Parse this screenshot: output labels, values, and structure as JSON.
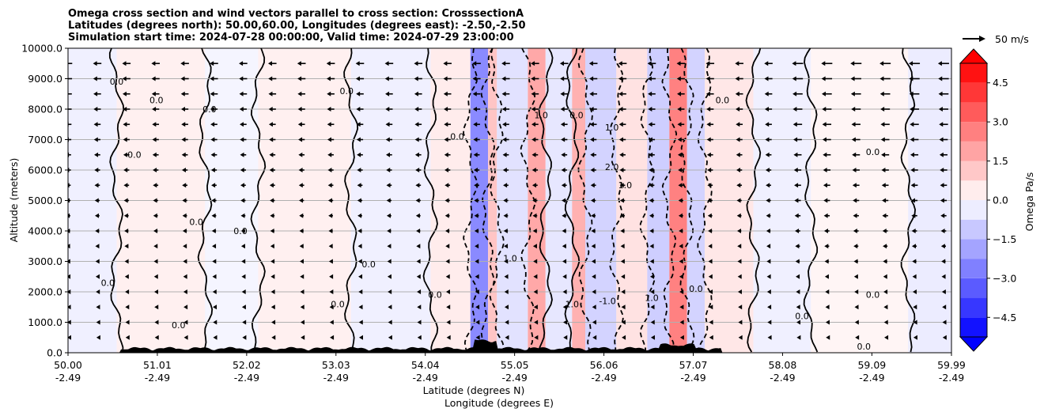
{
  "title_lines": [
    "Omega cross section and wind vectors parallel to cross section: CrosssectionA",
    "Latitudes (degrees north): 50.00,60.00, Longitudes (degrees east): -2.50,-2.50",
    "Simulation start time: 2024-07-28 00:00:00, Valid time: 2024-07-29 23:00:00"
  ],
  "chart_data": {
    "type": "heatmap",
    "ylabel": "Altitude (meters)",
    "xlabel_line1": "Latitude (degrees N)",
    "xlabel_line2": "Longitude (degrees E)",
    "ylim": [
      0,
      10000
    ],
    "xlim": [
      50.0,
      59.99
    ],
    "y_ticks": [
      {
        "value": 0,
        "label": "0.0"
      },
      {
        "value": 1000,
        "label": "1000.0"
      },
      {
        "value": 2000,
        "label": "2000.0"
      },
      {
        "value": 3000,
        "label": "3000.0"
      },
      {
        "value": 4000,
        "label": "4000.0"
      },
      {
        "value": 5000,
        "label": "5000.0"
      },
      {
        "value": 6000,
        "label": "6000.0"
      },
      {
        "value": 7000,
        "label": "7000.0"
      },
      {
        "value": 8000,
        "label": "8000.0"
      },
      {
        "value": 9000,
        "label": "9000.0"
      },
      {
        "value": 10000,
        "label": "10000.0"
      }
    ],
    "x_ticks": [
      {
        "value": 50.0,
        "lat": "50.00",
        "lon": "-2.49"
      },
      {
        "value": 51.01,
        "lat": "51.01",
        "lon": "-2.49"
      },
      {
        "value": 52.02,
        "lat": "52.02",
        "lon": "-2.49"
      },
      {
        "value": 53.03,
        "lat": "53.03",
        "lon": "-2.49"
      },
      {
        "value": 54.04,
        "lat": "54.04",
        "lon": "-2.49"
      },
      {
        "value": 55.05,
        "lat": "55.05",
        "lon": "-2.49"
      },
      {
        "value": 56.06,
        "lat": "56.06",
        "lon": "-2.49"
      },
      {
        "value": 57.07,
        "lat": "57.07",
        "lon": "-2.49"
      },
      {
        "value": 58.08,
        "lat": "58.08",
        "lon": "-2.49"
      },
      {
        "value": 59.09,
        "lat": "59.09",
        "lon": "-2.49"
      },
      {
        "value": 59.99,
        "lat": "59.99",
        "lon": "-2.49"
      }
    ],
    "grid": "horizontal",
    "colorbar": {
      "label": "Omega Pa/s",
      "range": [
        -5.25,
        5.25
      ],
      "ticks": [
        {
          "value": 4.5,
          "label": "4.5"
        },
        {
          "value": 3.0,
          "label": "3.0"
        },
        {
          "value": 1.5,
          "label": "1.5"
        },
        {
          "value": 0.0,
          "label": "0.0"
        },
        {
          "value": -1.5,
          "label": "−1.5"
        },
        {
          "value": -3.0,
          "label": "−3.0"
        },
        {
          "value": -4.5,
          "label": "−4.5"
        }
      ],
      "extend": "both",
      "colormap": "bwr"
    },
    "quiver_key_label": "50 m/s",
    "field_bands": [
      {
        "x0": 50.0,
        "x1": 50.55,
        "omega": -0.3
      },
      {
        "x0": 50.55,
        "x1": 51.55,
        "omega": 0.3
      },
      {
        "x0": 51.55,
        "x1": 52.15,
        "omega": -0.2
      },
      {
        "x0": 52.15,
        "x1": 53.2,
        "omega": 0.3
      },
      {
        "x0": 53.2,
        "x1": 54.1,
        "omega": -0.3
      },
      {
        "x0": 54.1,
        "x1": 54.55,
        "omega": 0.4
      },
      {
        "x0": 54.55,
        "x1": 54.75,
        "omega": -2.4
      },
      {
        "x0": 54.75,
        "x1": 54.85,
        "omega": 1.2
      },
      {
        "x0": 54.85,
        "x1": 55.2,
        "omega": -0.6
      },
      {
        "x0": 55.2,
        "x1": 55.4,
        "omega": 1.8
      },
      {
        "x0": 55.4,
        "x1": 55.7,
        "omega": -0.5
      },
      {
        "x0": 55.7,
        "x1": 55.85,
        "omega": 1.6
      },
      {
        "x0": 55.85,
        "x1": 56.2,
        "omega": -0.9
      },
      {
        "x0": 56.2,
        "x1": 56.55,
        "omega": 0.6
      },
      {
        "x0": 56.55,
        "x1": 56.8,
        "omega": -1.0
      },
      {
        "x0": 56.8,
        "x1": 57.0,
        "omega": 2.6
      },
      {
        "x0": 57.0,
        "x1": 57.2,
        "omega": -0.9
      },
      {
        "x0": 57.2,
        "x1": 57.75,
        "omega": 0.5
      },
      {
        "x0": 57.75,
        "x1": 58.4,
        "omega": -0.3
      },
      {
        "x0": 58.4,
        "x1": 59.5,
        "omega": 0.2
      },
      {
        "x0": 59.5,
        "x1": 59.99,
        "omega": -0.4
      }
    ],
    "contour_labels": [
      {
        "x": 50.55,
        "y": 8800,
        "text": "0.0"
      },
      {
        "x": 51.0,
        "y": 8200,
        "text": "0.0"
      },
      {
        "x": 51.6,
        "y": 7900,
        "text": "0.0"
      },
      {
        "x": 50.75,
        "y": 6400,
        "text": "0.0"
      },
      {
        "x": 51.45,
        "y": 4200,
        "text": "0.0"
      },
      {
        "x": 51.95,
        "y": 3900,
        "text": "0.0"
      },
      {
        "x": 50.45,
        "y": 2200,
        "text": "0.0"
      },
      {
        "x": 51.25,
        "y": 800,
        "text": "0.0"
      },
      {
        "x": 53.15,
        "y": 8500,
        "text": "0.0"
      },
      {
        "x": 53.4,
        "y": 2800,
        "text": "0.0"
      },
      {
        "x": 53.05,
        "y": 1500,
        "text": "0.0"
      },
      {
        "x": 54.4,
        "y": 7000,
        "text": "0.0"
      },
      {
        "x": 54.15,
        "y": 1800,
        "text": "0.0"
      },
      {
        "x": 55.35,
        "y": 7700,
        "text": "1.0"
      },
      {
        "x": 55.75,
        "y": 7700,
        "text": "0.0"
      },
      {
        "x": 56.15,
        "y": 7300,
        "text": "1.0"
      },
      {
        "x": 56.15,
        "y": 6000,
        "text": "2.0"
      },
      {
        "x": 56.3,
        "y": 5400,
        "text": "1.0"
      },
      {
        "x": 55.0,
        "y": 3000,
        "text": "1.0"
      },
      {
        "x": 55.7,
        "y": 1500,
        "text": "1.0"
      },
      {
        "x": 56.1,
        "y": 1600,
        "text": "-1.0"
      },
      {
        "x": 56.6,
        "y": 1700,
        "text": "1.0"
      },
      {
        "x": 57.1,
        "y": 2000,
        "text": "0.0"
      },
      {
        "x": 57.4,
        "y": 8200,
        "text": "0.0"
      },
      {
        "x": 58.3,
        "y": 1100,
        "text": "0.0"
      },
      {
        "x": 59.1,
        "y": 6500,
        "text": "0.0"
      },
      {
        "x": 59.1,
        "y": 1800,
        "text": "0.0"
      },
      {
        "x": 59.0,
        "y": 100,
        "text": "0.0"
      }
    ]
  }
}
